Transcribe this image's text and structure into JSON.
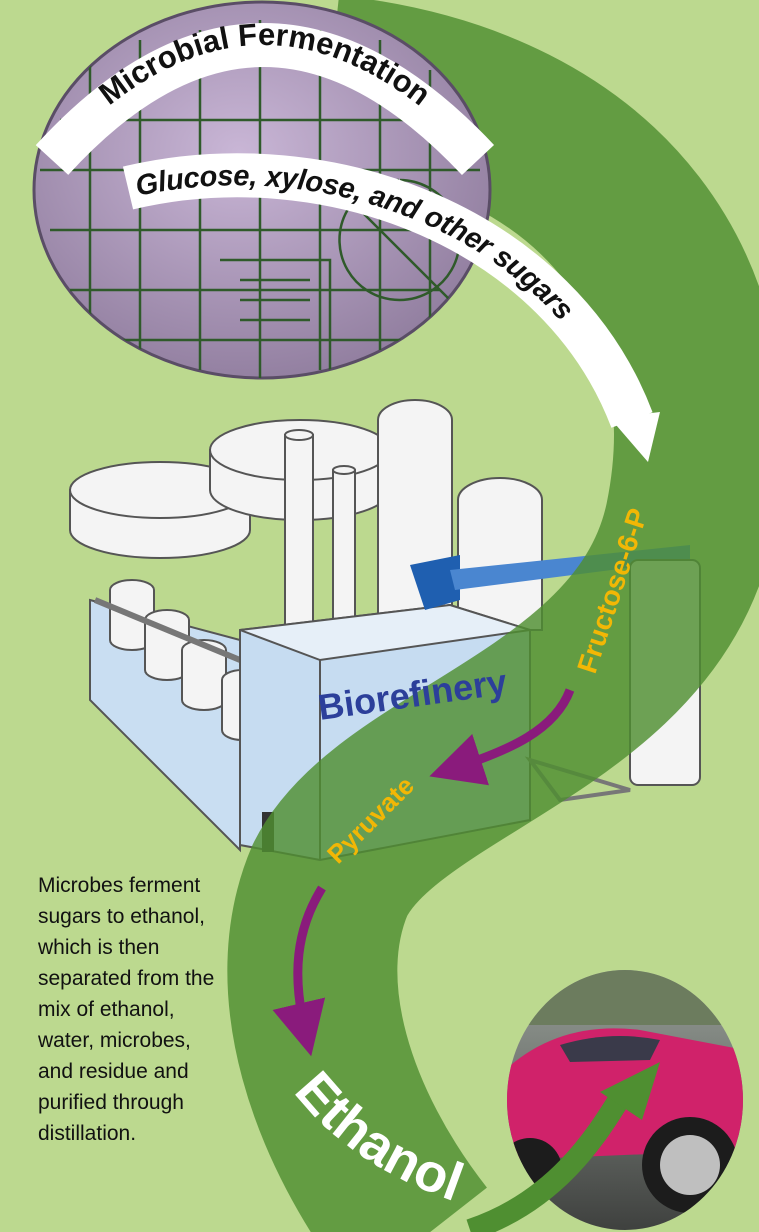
{
  "title": "Microbial Fermentation",
  "input_label": "Glucose, xylose, and other sugars",
  "facility_label": "Biorefinery",
  "steps": [
    "Fructose-6-P",
    "Pyruvate"
  ],
  "product": "Ethanol",
  "description": [
    "Microbes ferment",
    "sugars to ethanol,",
    "which is then",
    "separated from the",
    "mix of ethanol,",
    "water, microbes,",
    "and residue and",
    "purified through",
    "distillation."
  ]
}
